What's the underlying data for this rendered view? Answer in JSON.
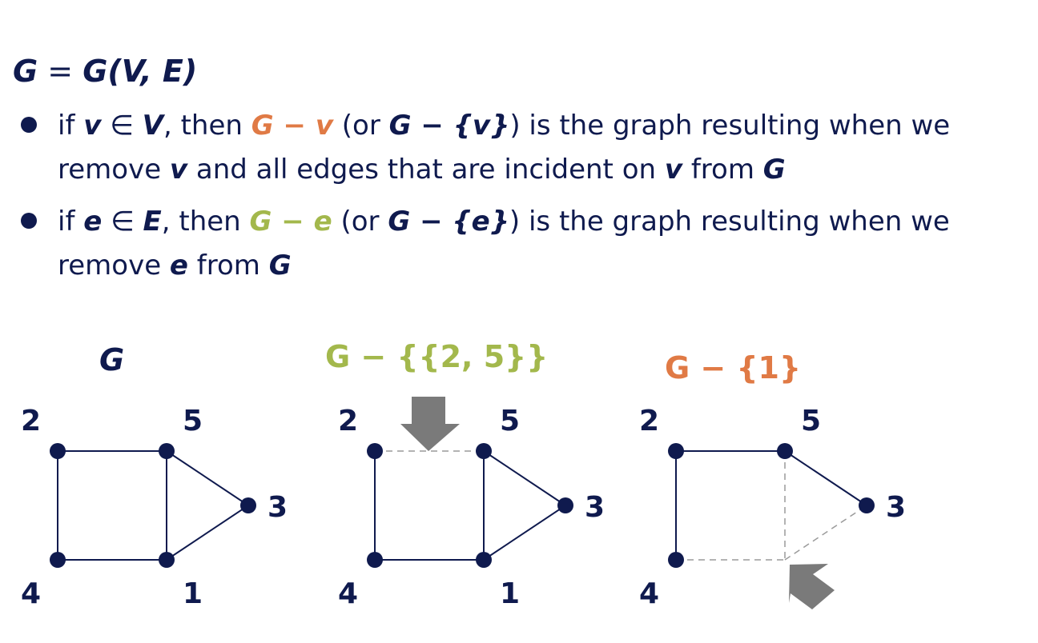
{
  "heading": {
    "g": "G",
    "eq": " = ",
    "g2": "G",
    "args": "(V, E)"
  },
  "bullets": [
    {
      "p1": "if ",
      "v": "v",
      "p2": " ∈ ",
      "V": "V",
      "p3": ", then ",
      "expr": "G − v",
      "p4": " (or ",
      "alt": "G − {v}",
      "p5": ") is the graph resulting when we remove ",
      "v2": "v",
      "p6": " and all edges that are incident on ",
      "v3": "v",
      "p7": " from ",
      "G": "G"
    },
    {
      "p1": "if ",
      "e": "e",
      "p2": " ∈ ",
      "E": "E",
      "p3": ", then ",
      "expr": "G − e",
      "p4": " (or ",
      "alt": "G − {e}",
      "p5": ") is the graph resulting when we remove ",
      "e2": "e",
      "p6": " from ",
      "G": "G"
    }
  ],
  "graphs": [
    {
      "title": "G",
      "labels": {
        "v2": "2",
        "v5": "5",
        "v3": "3",
        "v4": "4",
        "v1": "1"
      }
    },
    {
      "title": "G − {{2, 5}}",
      "labels": {
        "v2": "2",
        "v5": "5",
        "v3": "3",
        "v4": "4",
        "v1": "1"
      }
    },
    {
      "title": "G − {1}",
      "labels": {
        "v2": "2",
        "v5": "5",
        "v3": "3",
        "v4": "4"
      }
    }
  ],
  "colors": {
    "navy": "#0f1a4e",
    "orange": "#e07a45",
    "green": "#a3b84c",
    "dashed": "#9a9a9a",
    "arrow": "#7a7a7a"
  }
}
